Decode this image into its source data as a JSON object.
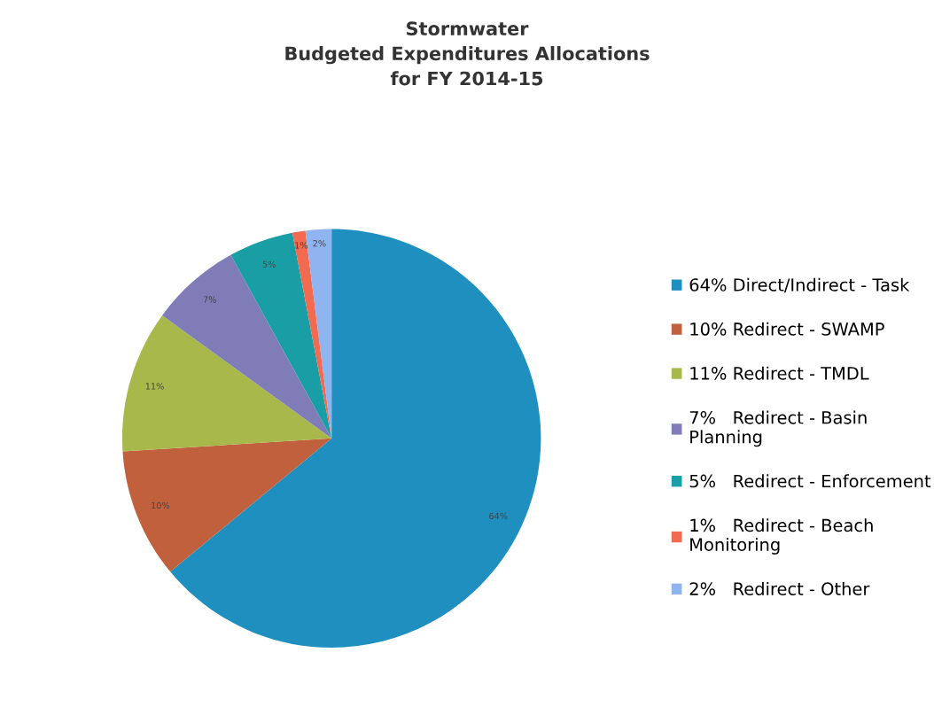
{
  "chart_data": {
    "type": "pie",
    "title": "Stormwater\nBudgeted Expenditures Allocations\nfor FY 2014-15",
    "categories": [
      "64% Direct/Indirect - Task",
      "10% Redirect - SWAMP",
      "11% Redirect - TMDL",
      "7%   Redirect - Basin Planning",
      "5%   Redirect - Enforcement",
      "1%   Redirect - Beach Monitoring",
      "2%   Redirect - Other"
    ],
    "values": [
      64,
      10,
      11,
      7,
      5,
      1,
      2
    ],
    "colors": [
      "#1f8fbf",
      "#c0603c",
      "#a8b84a",
      "#7f7cb8",
      "#1a9ea6",
      "#f26a4f",
      "#8fb4f0"
    ],
    "value_labels": [
      "64%",
      "10%",
      "11%",
      "7%",
      "5%",
      "1%",
      "2%"
    ],
    "legend": "right"
  }
}
